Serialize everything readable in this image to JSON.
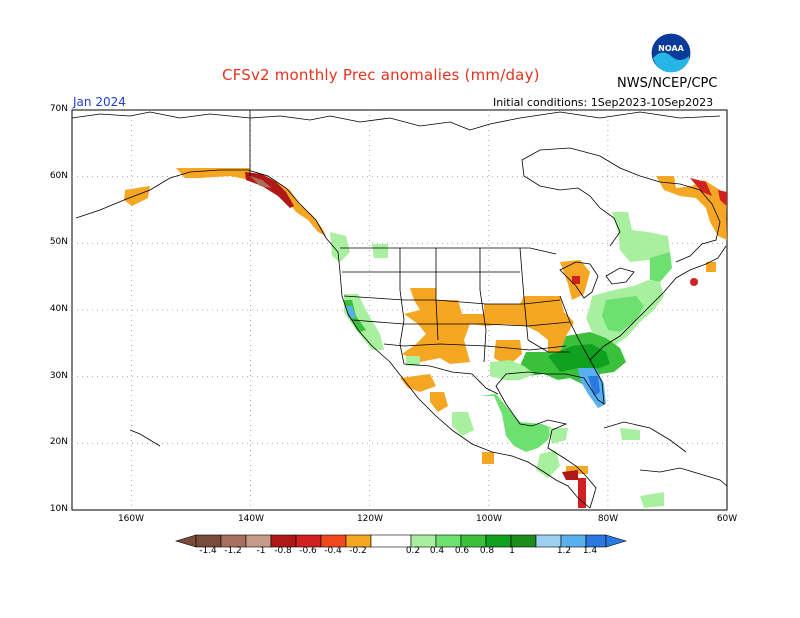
{
  "header": {
    "title": "CFSv2 monthly Prec anomalies (mm/day)",
    "agency": "NWS/NCEP/CPC",
    "logo_text": "NOAA",
    "valid_month": "Jan 2024",
    "initial_conditions": "Initial conditions: 1Sep2023-10Sep2023"
  },
  "map": {
    "projection": "lat-lon",
    "lat_labels": [
      "70N",
      "60N",
      "50N",
      "40N",
      "30N",
      "20N",
      "10N"
    ],
    "lon_labels": [
      "160W",
      "140W",
      "120W",
      "100W",
      "80W",
      "60W"
    ],
    "grid": "dotted"
  },
  "colorbar": {
    "labels": [
      "-1.4",
      "-1.2",
      "-1",
      "-0.8",
      "-0.6",
      "-0.4",
      "-0.2",
      "0.2",
      "0.4",
      "0.6",
      "0.8",
      "1",
      "1.2",
      "1.4"
    ],
    "colors": {
      "lt_m14": "#7a4a3a",
      "m14_m12": "#a86f5f",
      "m12_m1": "#c89a8a",
      "m1_m08": "#b01818",
      "m08_m06": "#d02020",
      "m06_m04": "#f0481c",
      "m04_m02": "#f5a623",
      "m02_02": "#ffffff",
      "p02_04": "#a8f0a0",
      "p04_06": "#6ee070",
      "p06_08": "#3ac03a",
      "p08_1": "#10a020",
      "p1_12": "#9ed0f2",
      "p12_14": "#5ab0ec",
      "gt_14": "#2a78e0"
    }
  }
}
